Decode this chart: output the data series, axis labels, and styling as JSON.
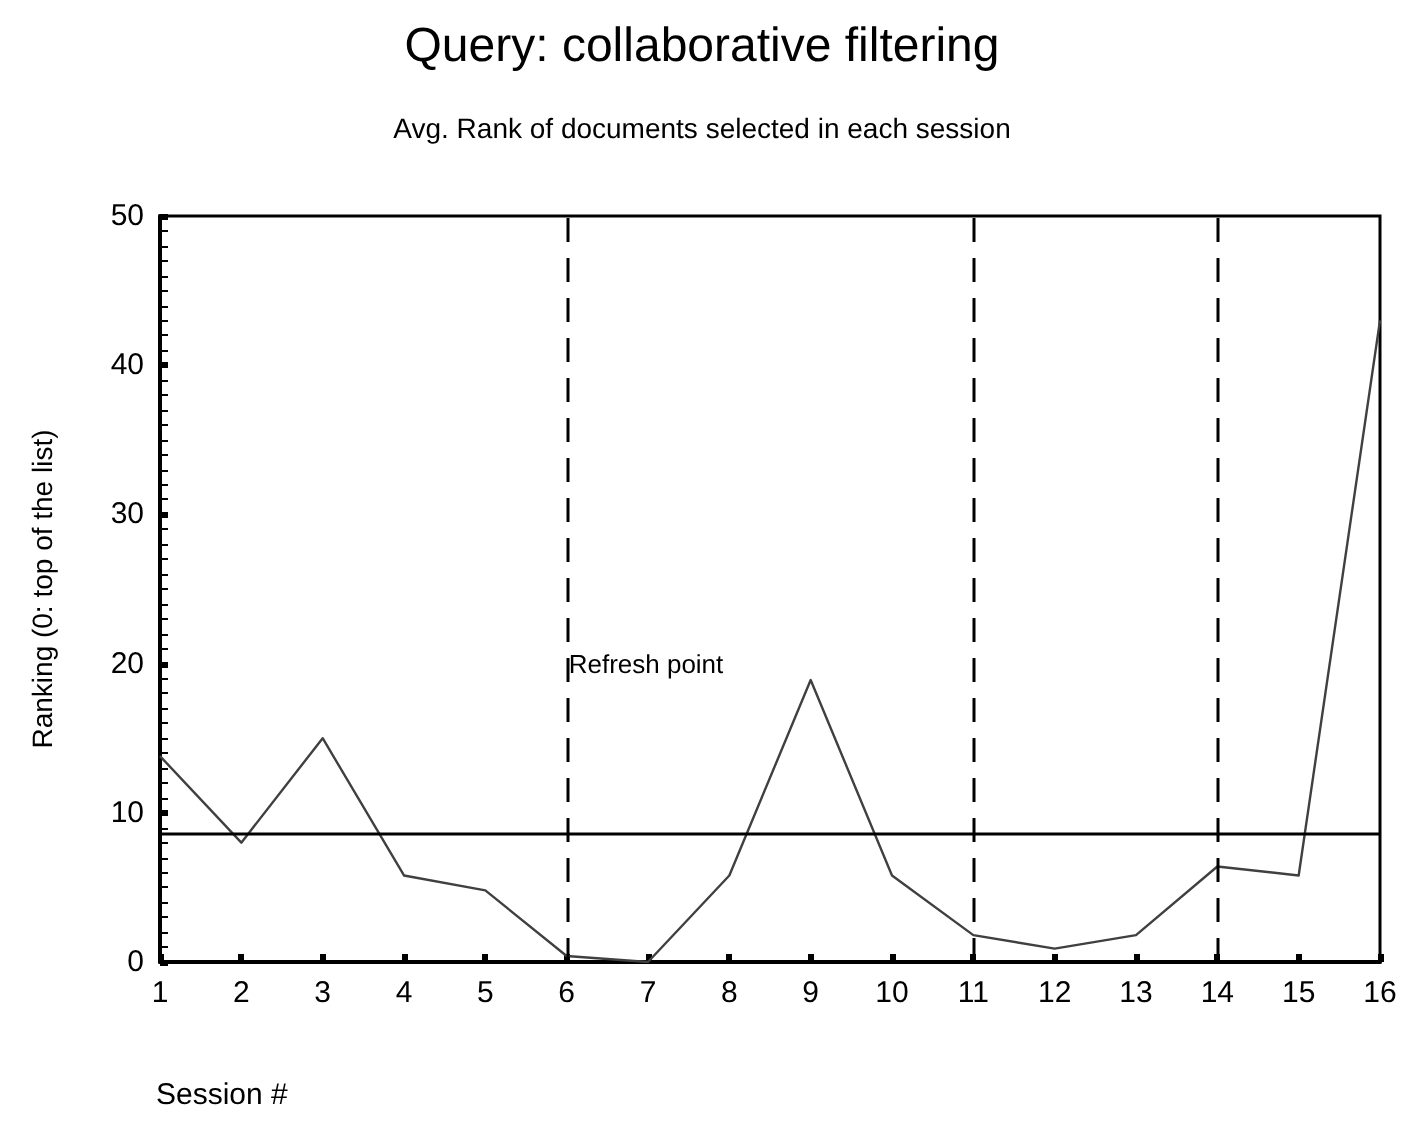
{
  "chart_data": {
    "type": "line",
    "title": "Query: collaborative filtering",
    "subtitle": "Avg. Rank of documents selected in each session",
    "xlabel": "Session #",
    "ylabel": "Ranking (0: top of the list)",
    "x": [
      1,
      2,
      3,
      4,
      5,
      6,
      7,
      8,
      9,
      10,
      11,
      12,
      13,
      14,
      15,
      16
    ],
    "series": [
      {
        "color": "#404040",
        "values": [
          13.8,
          8.0,
          15.0,
          5.8,
          4.8,
          0.4,
          0,
          5.8,
          18.9,
          5.8,
          1.8,
          0.9,
          1.8,
          6.4,
          5.8,
          43.0
        ]
      }
    ],
    "xlim": [
      1,
      16
    ],
    "xticks": [
      1,
      2,
      3,
      4,
      5,
      6,
      7,
      8,
      9,
      10,
      11,
      12,
      13,
      14,
      15,
      16
    ],
    "ylim": [
      0,
      50
    ],
    "yticks": [
      0,
      10,
      20,
      30,
      40,
      50
    ],
    "ref_lines": [
      {
        "axis": "y",
        "value": 8.6,
        "color": "#000000",
        "line_style": "solid"
      },
      {
        "axis": "x",
        "value": 6,
        "color": "#000000",
        "line_style": "dashed"
      },
      {
        "axis": "x",
        "value": 11,
        "color": "#000000",
        "line_style": "dashed"
      },
      {
        "axis": "x",
        "value": 14,
        "color": "#000000",
        "line_style": "dashed"
      }
    ],
    "annotations": [
      {
        "text": "Refresh point",
        "x": 6,
        "y": 20
      }
    ],
    "grid": false,
    "marker": "none",
    "line_style": "solid"
  }
}
